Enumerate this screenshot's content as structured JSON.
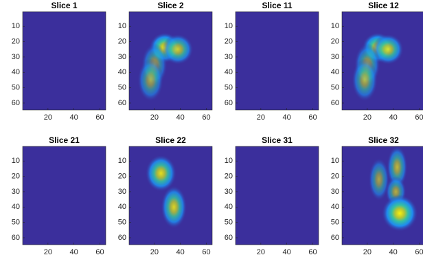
{
  "chart_data": [
    {
      "type": "image",
      "title": "Slice 1",
      "xlim": [
        0.5,
        64.5
      ],
      "ylim": [
        0.5,
        64.5
      ],
      "xticks": [
        20,
        40,
        60
      ],
      "yticks": [
        10,
        20,
        30,
        40,
        50,
        60
      ],
      "background": "#3b2f9c",
      "spots": []
    },
    {
      "type": "image",
      "title": "Slice 2",
      "xlim": [
        0.5,
        64.5
      ],
      "ylim": [
        0.5,
        64.5
      ],
      "xticks": [
        20,
        40,
        60
      ],
      "yticks": [
        10,
        20,
        30,
        40,
        50,
        60
      ],
      "background": "#3b2f9c",
      "spots": [
        {
          "x": 28,
          "y": 24,
          "rx": 6,
          "ry": 5,
          "peak": 1
        },
        {
          "x": 38,
          "y": 25,
          "rx": 6,
          "ry": 5,
          "peak": 0.8
        },
        {
          "x": 20,
          "y": 35,
          "rx": 5,
          "ry": 7,
          "peak": 0.6
        },
        {
          "x": 17,
          "y": 45,
          "rx": 5,
          "ry": 7,
          "peak": 0.6
        }
      ]
    },
    {
      "type": "image",
      "title": "Slice 11",
      "xlim": [
        0.5,
        64.5
      ],
      "ylim": [
        0.5,
        64.5
      ],
      "xticks": [
        20,
        40,
        60
      ],
      "yticks": [
        10,
        20,
        30,
        40,
        50,
        60
      ],
      "background": "#3b2f9c",
      "spots": []
    },
    {
      "type": "image",
      "title": "Slice 12",
      "xlim": [
        0.5,
        64.5
      ],
      "ylim": [
        0.5,
        64.5
      ],
      "xticks": [
        20,
        40,
        60
      ],
      "yticks": [
        10,
        20,
        30,
        40,
        50,
        60
      ],
      "background": "#3b2f9c",
      "spots": [
        {
          "x": 28,
          "y": 24,
          "rx": 6,
          "ry": 5,
          "peak": 1
        },
        {
          "x": 36,
          "y": 25,
          "rx": 6,
          "ry": 5,
          "peak": 0.85
        },
        {
          "x": 20,
          "y": 35,
          "rx": 5,
          "ry": 7,
          "peak": 0.65
        },
        {
          "x": 18,
          "y": 45,
          "rx": 5,
          "ry": 7,
          "peak": 0.65
        }
      ]
    },
    {
      "type": "image",
      "title": "Slice 21",
      "xlim": [
        0.5,
        64.5
      ],
      "ylim": [
        0.5,
        64.5
      ],
      "xticks": [
        20,
        40,
        60
      ],
      "yticks": [
        10,
        20,
        30,
        40,
        50,
        60
      ],
      "background": "#3b2f9c",
      "spots": []
    },
    {
      "type": "image",
      "title": "Slice 22",
      "xlim": [
        0.5,
        64.5
      ],
      "ylim": [
        0.5,
        64.5
      ],
      "xticks": [
        20,
        40,
        60
      ],
      "yticks": [
        10,
        20,
        30,
        40,
        50,
        60
      ],
      "background": "#3b2f9c",
      "spots": [
        {
          "x": 25,
          "y": 18,
          "rx": 6,
          "ry": 6,
          "peak": 0.9
        },
        {
          "x": 35,
          "y": 40,
          "rx": 5,
          "ry": 7,
          "peak": 0.85
        }
      ]
    },
    {
      "type": "image",
      "title": "Slice 31",
      "xlim": [
        0.5,
        64.5
      ],
      "ylim": [
        0.5,
        64.5
      ],
      "xticks": [
        20,
        40,
        60
      ],
      "yticks": [
        10,
        20,
        30,
        40,
        50,
        60
      ],
      "background": "#3b2f9c",
      "spots": []
    },
    {
      "type": "image",
      "title": "Slice 32",
      "xlim": [
        0.5,
        64.5
      ],
      "ylim": [
        0.5,
        64.5
      ],
      "xticks": [
        20,
        40,
        60
      ],
      "yticks": [
        10,
        20,
        30,
        40,
        50,
        60
      ],
      "background": "#3b2f9c",
      "spots": [
        {
          "x": 43,
          "y": 14,
          "rx": 4,
          "ry": 7,
          "peak": 0.7
        },
        {
          "x": 29,
          "y": 22,
          "rx": 4,
          "ry": 7,
          "peak": 0.6
        },
        {
          "x": 42,
          "y": 30,
          "rx": 4,
          "ry": 5,
          "peak": 0.65
        },
        {
          "x": 45,
          "y": 44,
          "rx": 7,
          "ry": 6,
          "peak": 1
        }
      ]
    }
  ]
}
